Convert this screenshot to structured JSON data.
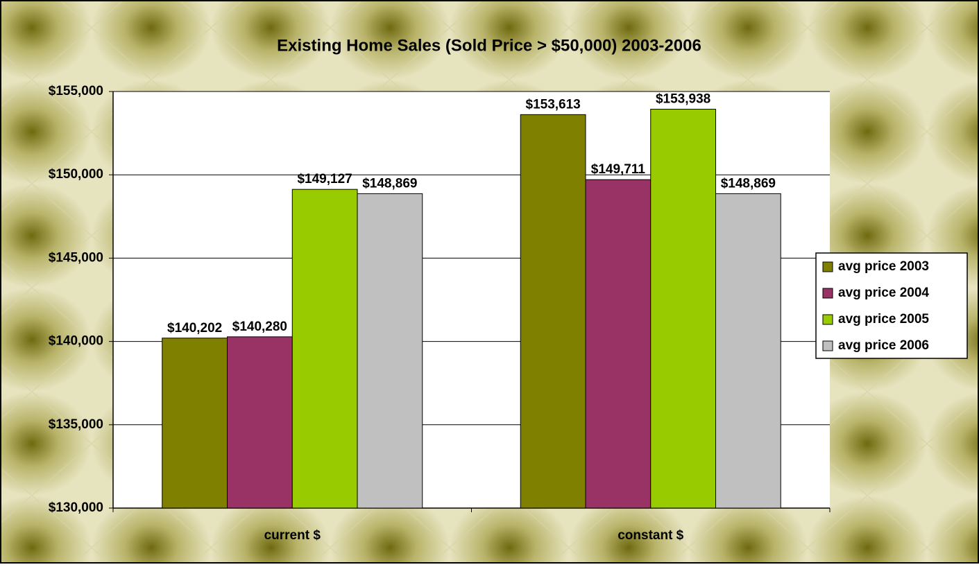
{
  "chart_data": {
    "type": "bar",
    "title": "Existing Home Sales (Sold Price  > $50,000)  2003-2006",
    "categories": [
      "current $",
      "constant $"
    ],
    "series": [
      {
        "name": "avg price 2003",
        "color": "#808000",
        "values": [
          140202,
          153613
        ],
        "value_labels": [
          "$140,202",
          "$153,613"
        ]
      },
      {
        "name": "avg price 2004",
        "color": "#993366",
        "values": [
          140280,
          149711
        ],
        "value_labels": [
          "$140,280",
          "$149,711"
        ]
      },
      {
        "name": "avg price 2005",
        "color": "#99cc00",
        "values": [
          149127,
          153938
        ],
        "value_labels": [
          "$149,127",
          "$153,938"
        ]
      },
      {
        "name": "avg price 2006",
        "color": "#c0c0c0",
        "values": [
          148869,
          148869
        ],
        "value_labels": [
          "$148,869",
          "$148,869"
        ]
      }
    ],
    "ylim": [
      130000,
      155000
    ],
    "yticks": [
      {
        "value": 130000,
        "label": "$130,000"
      },
      {
        "value": 135000,
        "label": "$135,000"
      },
      {
        "value": 140000,
        "label": "$140,000"
      },
      {
        "value": 145000,
        "label": "$145,000"
      },
      {
        "value": 150000,
        "label": "$150,000"
      },
      {
        "value": 155000,
        "label": "$155,000"
      }
    ],
    "grid": true,
    "legend": "right"
  }
}
